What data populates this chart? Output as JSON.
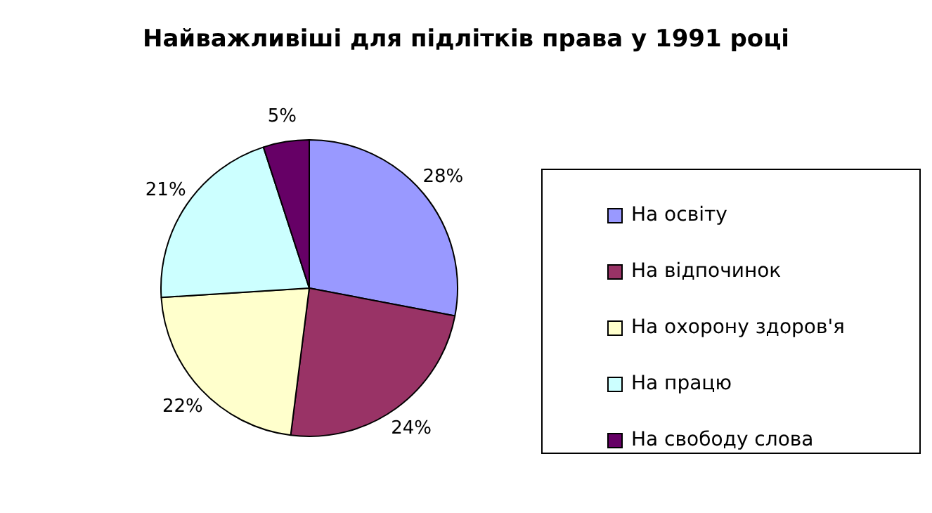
{
  "chart_data": {
    "type": "pie",
    "title": "Найважливіші для підлітків права у 1991 році",
    "categories": [
      "На освіту",
      "На відпочинок",
      "На охорону здоров'я",
      "На працю",
      "На свободу слова"
    ],
    "values": [
      28,
      24,
      22,
      21,
      5
    ],
    "value_labels": [
      "28%",
      "24%",
      "22%",
      "21%",
      "5%"
    ],
    "colors": [
      "#9999ff",
      "#993366",
      "#ffffcc",
      "#ccffff",
      "#660066"
    ],
    "legend": "right"
  }
}
